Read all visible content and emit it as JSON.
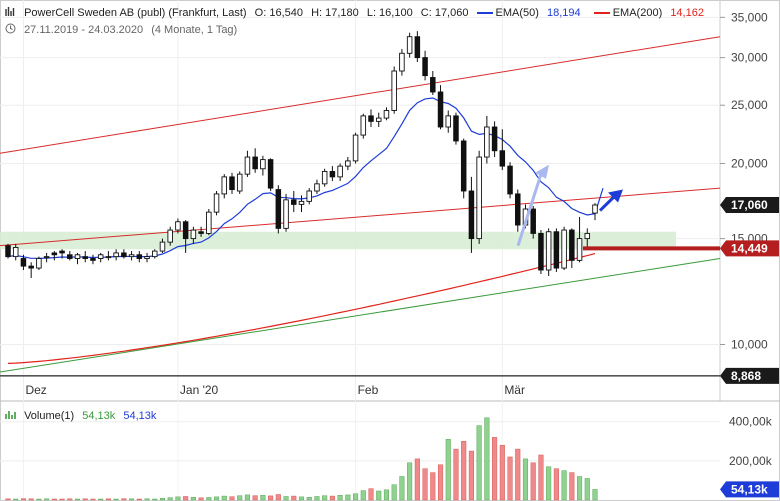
{
  "header": {
    "title": "PowerCell Sweden AB (publ) (Frankfurt, Last)",
    "open": "O: 16,540",
    "high": "H: 17,180",
    "low": "L: 16,100",
    "close": "C: 17,060",
    "ema50_label": "EMA(50)",
    "ema50_value": "18,194",
    "ema200_label": "EMA(200)",
    "ema200_value": "14,162",
    "date_range": "27.11.2019 - 24.03.2020",
    "period": "(4 Monate, 1 Tag)"
  },
  "volume_header": {
    "label": "Volume(1)",
    "value1": "54,13k",
    "value2": "54,13k"
  },
  "colors": {
    "ema50": "#1e3cd7",
    "ema200": "#e2231a",
    "trend_red": "#d92b2b",
    "trend_green": "#3a9a3a",
    "zone": "#d5ecd2",
    "up_volume": "#8fd18f",
    "down_volume": "#f08a8a",
    "badge_dark": "#1a1a1a",
    "badge_red": "#b41e1e",
    "badge_blue": "#1e3cd7"
  },
  "chart_data": {
    "type": "candlestick",
    "title": "PowerCell Sweden AB (publ) (Frankfurt, Last)",
    "y_scale": "log",
    "ylim": [
      9000,
      36000
    ],
    "y_ticks": [
      10000,
      15000,
      20000,
      25000,
      30000,
      35000
    ],
    "y_tick_labels": [
      "10,000",
      "15,000",
      "20,000",
      "25,000",
      "30,000",
      "35,000"
    ],
    "x_labels": [
      {
        "label": "Dez",
        "index": 2
      },
      {
        "label": "Jan '20",
        "index": 22
      },
      {
        "label": "Feb",
        "index": 45
      },
      {
        "label": "Mär",
        "index": 64
      }
    ],
    "price_labels": [
      {
        "text": "17,060",
        "value": 17060,
        "style": "dark"
      },
      {
        "text": "14,449",
        "value": 14449,
        "style": "red"
      },
      {
        "text": "8,868",
        "value": 8868,
        "style": "dark"
      }
    ],
    "ohlc": [
      [
        14600,
        14700,
        13900,
        14000
      ],
      [
        14000,
        14700,
        13800,
        14500
      ],
      [
        13900,
        14100,
        13300,
        13500
      ],
      [
        13500,
        13700,
        12900,
        13400
      ],
      [
        13400,
        14000,
        13300,
        13900
      ],
      [
        14000,
        14200,
        13700,
        14000
      ],
      [
        14200,
        14300,
        13800,
        14100
      ],
      [
        14300,
        14400,
        13900,
        14200
      ],
      [
        14100,
        14300,
        13800,
        13900
      ],
      [
        13900,
        14200,
        13600,
        14100
      ],
      [
        14000,
        14300,
        13700,
        13900
      ],
      [
        13900,
        14100,
        13600,
        13800
      ],
      [
        13900,
        14200,
        13700,
        14100
      ],
      [
        14000,
        14300,
        13800,
        14000
      ],
      [
        14000,
        14400,
        13800,
        14200
      ],
      [
        14200,
        14400,
        13900,
        14000
      ],
      [
        14000,
        14300,
        13800,
        14100
      ],
      [
        14100,
        14300,
        13700,
        13900
      ],
      [
        13900,
        14200,
        13700,
        14000
      ],
      [
        14000,
        14400,
        13900,
        14300
      ],
      [
        14300,
        15000,
        14200,
        14800
      ],
      [
        14800,
        15700,
        14600,
        15500
      ],
      [
        15500,
        16200,
        15300,
        16000
      ],
      [
        16000,
        16100,
        14200,
        15000
      ],
      [
        15000,
        15700,
        14700,
        15500
      ],
      [
        15400,
        15700,
        15100,
        15300
      ],
      [
        15300,
        16800,
        15200,
        16600
      ],
      [
        16600,
        18000,
        16400,
        17800
      ],
      [
        17800,
        19200,
        17500,
        19000
      ],
      [
        19000,
        19300,
        17800,
        18100
      ],
      [
        18000,
        19400,
        17800,
        19200
      ],
      [
        19200,
        21000,
        19000,
        20500
      ],
      [
        20500,
        21200,
        19300,
        19600
      ],
      [
        19600,
        20600,
        19100,
        20300
      ],
      [
        20300,
        20400,
        18000,
        18200
      ],
      [
        18100,
        18400,
        15300,
        15600
      ],
      [
        15600,
        17800,
        15400,
        17400
      ],
      [
        17400,
        18000,
        16600,
        17100
      ],
      [
        17100,
        17700,
        16600,
        17300
      ],
      [
        17300,
        18200,
        17100,
        18000
      ],
      [
        18000,
        18800,
        17800,
        18500
      ],
      [
        18500,
        19600,
        18300,
        19400
      ],
      [
        19400,
        19800,
        18700,
        19000
      ],
      [
        19000,
        20000,
        18700,
        19800
      ],
      [
        19800,
        20500,
        19500,
        20200
      ],
      [
        20200,
        22500,
        20000,
        22300
      ],
      [
        22300,
        24200,
        22000,
        24000
      ],
      [
        24000,
        24600,
        23000,
        23500
      ],
      [
        23500,
        24300,
        23000,
        23800
      ],
      [
        23800,
        24800,
        23600,
        24500
      ],
      [
        24500,
        29000,
        24200,
        28500
      ],
      [
        28500,
        31000,
        28000,
        30500
      ],
      [
        30500,
        33000,
        30000,
        32500
      ],
      [
        32500,
        33200,
        29500,
        30000
      ],
      [
        30000,
        30800,
        27500,
        28000
      ],
      [
        27800,
        28500,
        26000,
        26300
      ],
      [
        26300,
        27000,
        22800,
        23000
      ],
      [
        23000,
        24500,
        22500,
        24000
      ],
      [
        24000,
        24300,
        21500,
        21800
      ],
      [
        21800,
        22000,
        17500,
        18000
      ],
      [
        18000,
        19000,
        14200,
        15000
      ],
      [
        15000,
        21000,
        14700,
        20500
      ],
      [
        20500,
        24000,
        20000,
        23000
      ],
      [
        23000,
        23500,
        20500,
        21000
      ],
      [
        21000,
        22800,
        19500,
        19800
      ],
      [
        19800,
        20100,
        17500,
        17800
      ],
      [
        17800,
        18100,
        15400,
        15800
      ],
      [
        15800,
        17100,
        15600,
        16800
      ],
      [
        16800,
        17000,
        15000,
        15300
      ],
      [
        15300,
        15500,
        13100,
        13300
      ],
      [
        13300,
        15600,
        13000,
        15400
      ],
      [
        15400,
        15600,
        13200,
        13400
      ],
      [
        13400,
        15700,
        13300,
        15500
      ],
      [
        15500,
        15600,
        13400,
        13800
      ],
      [
        13800,
        16300,
        13700,
        15000
      ],
      [
        15000,
        15600,
        14400,
        15300
      ],
      [
        16540,
        17180,
        16100,
        17060
      ]
    ],
    "volume_ticks": [
      200000,
      400000
    ],
    "volume_tick_labels": [
      "200,00k",
      "400,00k"
    ],
    "volume_badge": "54,13k",
    "volume": [
      6,
      5,
      7,
      6,
      5,
      6,
      5,
      5,
      6,
      5,
      6,
      5,
      5,
      6,
      5,
      7,
      6,
      5,
      6,
      5,
      9,
      12,
      16,
      18,
      14,
      11,
      13,
      16,
      20,
      17,
      22,
      26,
      22,
      24,
      21,
      28,
      18,
      20,
      16,
      14,
      18,
      22,
      20,
      24,
      26,
      32,
      48,
      58,
      46,
      52,
      78,
      120,
      190,
      210,
      160,
      140,
      180,
      310,
      260,
      300,
      250,
      380,
      420,
      320,
      280,
      220,
      260,
      210,
      190,
      230,
      170,
      160,
      150,
      140,
      120,
      110,
      54
    ],
    "volume_up": [
      false,
      true,
      false,
      false,
      true,
      true,
      false,
      false,
      false,
      true,
      false,
      false,
      true,
      false,
      true,
      false,
      true,
      false,
      true,
      true,
      true,
      true,
      true,
      false,
      true,
      false,
      true,
      true,
      true,
      false,
      true,
      true,
      false,
      true,
      false,
      false,
      true,
      false,
      true,
      true,
      true,
      true,
      false,
      true,
      true,
      true,
      true,
      false,
      true,
      true,
      true,
      true,
      true,
      false,
      false,
      false,
      false,
      true,
      false,
      false,
      false,
      true,
      true,
      false,
      false,
      false,
      false,
      true,
      false,
      false,
      true,
      false,
      true,
      false,
      true,
      true,
      true
    ]
  }
}
